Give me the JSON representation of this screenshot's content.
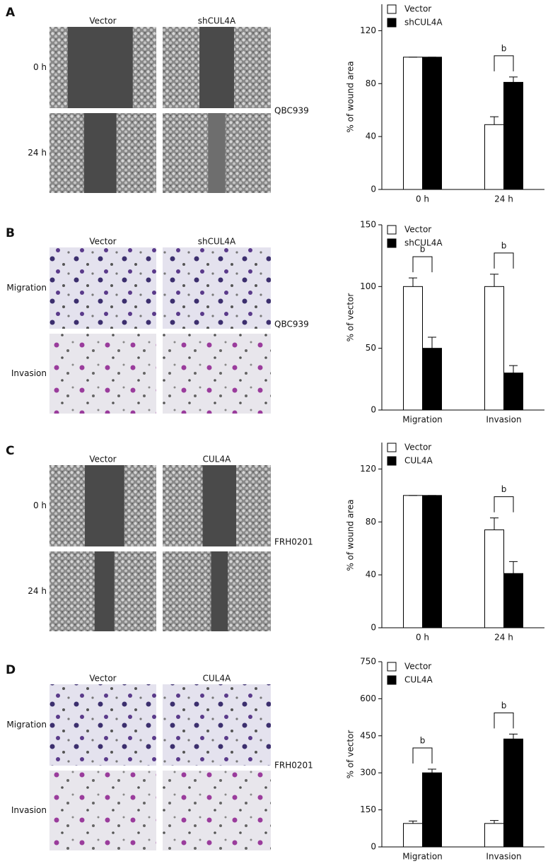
{
  "panels": [
    {
      "label": "A",
      "columns": [
        "Vector",
        "shCUL4A"
      ],
      "rows": [
        "0 h",
        "24 h"
      ],
      "cell_line": "QBC939"
    },
    {
      "label": "B",
      "columns": [
        "Vector",
        "shCUL4A"
      ],
      "rows": [
        "Migration",
        "Invasion"
      ],
      "cell_line": "QBC939"
    },
    {
      "label": "C",
      "columns": [
        "Vector",
        "CUL4A"
      ],
      "rows": [
        "0 h",
        "24 h"
      ],
      "cell_line": "FRH0201"
    },
    {
      "label": "D",
      "columns": [
        "Vector",
        "CUL4A"
      ],
      "rows": [
        "Migration",
        "Invasion"
      ],
      "cell_line": "FRH0201"
    }
  ],
  "chart_data": [
    {
      "type": "bar",
      "ylabel": "% of wound area",
      "categories": [
        "0 h",
        "24 h"
      ],
      "series": [
        {
          "name": "Vector",
          "color": "#ffffff",
          "values": [
            100,
            49
          ],
          "errors": [
            0,
            6
          ]
        },
        {
          "name": "shCUL4A",
          "color": "#000000",
          "values": [
            100,
            81
          ],
          "errors": [
            0,
            4
          ]
        }
      ],
      "significance": [
        null,
        "b"
      ],
      "ylim": [
        0,
        140
      ],
      "yticks": [
        0,
        40,
        80,
        120
      ],
      "legend": "top-left"
    },
    {
      "type": "bar",
      "ylabel": "% of vector",
      "categories": [
        "Migration",
        "Invasion"
      ],
      "series": [
        {
          "name": "Vector",
          "color": "#ffffff",
          "values": [
            100,
            100
          ],
          "errors": [
            7,
            10
          ]
        },
        {
          "name": "shCUL4A",
          "color": "#000000",
          "values": [
            50,
            30
          ],
          "errors": [
            9,
            6
          ]
        }
      ],
      "significance": [
        "b",
        "b"
      ],
      "ylim": [
        0,
        150
      ],
      "yticks": [
        0,
        50,
        100,
        150
      ],
      "legend": "top-left"
    },
    {
      "type": "bar",
      "ylabel": "% of wound area",
      "categories": [
        "0 h",
        "24 h"
      ],
      "series": [
        {
          "name": "Vector",
          "color": "#ffffff",
          "values": [
            100,
            74
          ],
          "errors": [
            0,
            9
          ]
        },
        {
          "name": "CUL4A",
          "color": "#000000",
          "values": [
            100,
            41
          ],
          "errors": [
            0,
            9
          ]
        }
      ],
      "significance": [
        null,
        "b"
      ],
      "ylim": [
        0,
        140
      ],
      "yticks": [
        0,
        40,
        80,
        120
      ],
      "legend": "top-left"
    },
    {
      "type": "bar",
      "ylabel": "% of vector",
      "categories": [
        "Migration",
        "Invasion"
      ],
      "series": [
        {
          "name": "Vector",
          "color": "#ffffff",
          "values": [
            95,
            95
          ],
          "errors": [
            10,
            12
          ]
        },
        {
          "name": "CUL4A",
          "color": "#000000",
          "values": [
            300,
            437
          ],
          "errors": [
            15,
            20
          ]
        }
      ],
      "significance": [
        "b",
        "b"
      ],
      "ylim": [
        0,
        750
      ],
      "yticks": [
        0,
        150,
        300,
        450,
        600,
        750
      ],
      "legend": "top-left"
    }
  ]
}
